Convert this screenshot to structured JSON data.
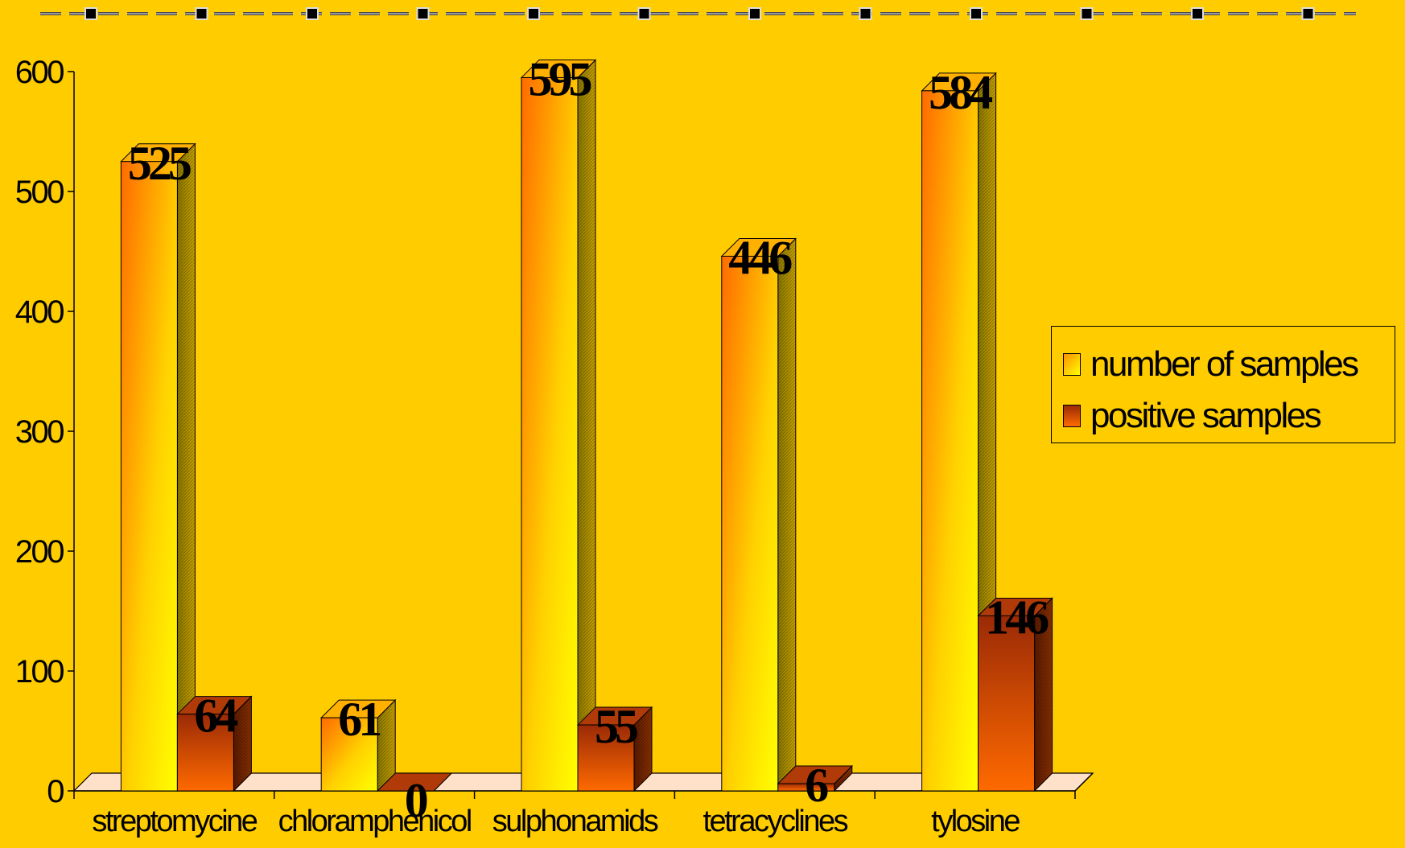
{
  "chart_data": {
    "type": "bar",
    "categories": [
      "streptomycine",
      "chloramphenicol",
      "sulphonamids",
      "tetracyclines",
      "tylosine"
    ],
    "series": [
      {
        "name": "number of samples",
        "values": [
          525,
          61,
          595,
          446,
          584
        ]
      },
      {
        "name": "positive samples",
        "values": [
          64,
          0,
          55,
          6,
          146
        ]
      }
    ],
    "y_ticks": [
      "0",
      "100",
      "200",
      "300",
      "400",
      "500",
      "600"
    ],
    "ylim": [
      0,
      600
    ],
    "data_labels": [
      [
        "525",
        "61",
        "595",
        "446",
        "584"
      ],
      [
        "64",
        "0",
        "55",
        "6",
        "146"
      ]
    ],
    "legend_position": "right",
    "grid": false,
    "style": "3d-clustered-column"
  },
  "colors": {
    "background": "#FFCC00",
    "series1_light": "#FFFF00",
    "series1_dark": "#FF6A00",
    "series1_side": "#9C8A00",
    "series2_light": "#FF6A00",
    "series2_dark": "#A0280A",
    "series2_side": "#6E1E00",
    "floor": "#FFE0C8"
  }
}
